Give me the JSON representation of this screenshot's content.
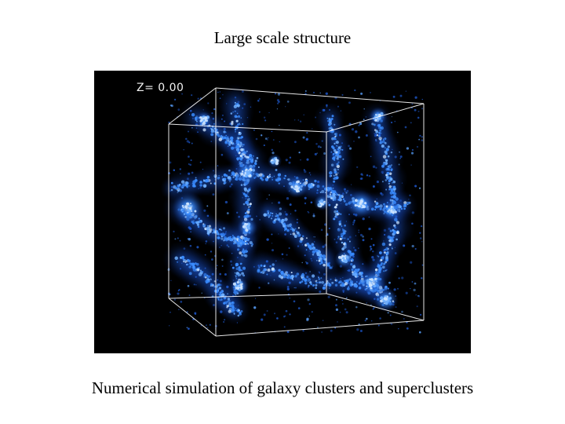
{
  "slide": {
    "title": "Large scale structure",
    "caption": "Numerical simulation of galaxy clusters and superclusters"
  },
  "simulation": {
    "redshift_label": "Z=  0.00",
    "background_color": "#000000",
    "galaxy_color": "#3a8cff",
    "bright_color": "#cfe6ff",
    "box_edge_color": "#ffffff"
  }
}
